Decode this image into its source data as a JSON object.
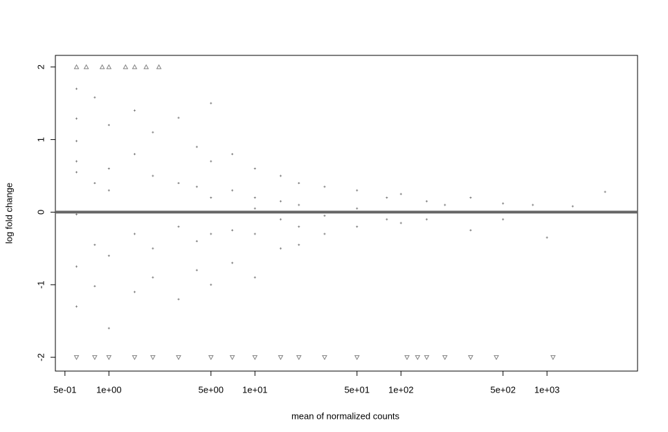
{
  "chart_data": {
    "type": "scatter",
    "xlabel": "mean of normalized counts",
    "ylabel": "log fold change",
    "xscale": "log",
    "xlim": [
      0.43,
      4170
    ],
    "ylim": [
      -2.19,
      2.16
    ],
    "xticks": [
      {
        "value": 0.5,
        "label": "5e-01"
      },
      {
        "value": 1,
        "label": "1e+00"
      },
      {
        "value": 5,
        "label": "5e+00"
      },
      {
        "value": 10,
        "label": "1e+01"
      },
      {
        "value": 50,
        "label": "5e+01"
      },
      {
        "value": 100,
        "label": "1e+02"
      },
      {
        "value": 500,
        "label": "5e+02"
      },
      {
        "value": 1000,
        "label": "1e+03"
      }
    ],
    "yticks": [
      -2,
      -1,
      0,
      1,
      2
    ],
    "hline": 0,
    "hline_color": "#666666",
    "series": [
      {
        "color": "#808080",
        "marker": "plus",
        "x": [
          0.6,
          0.6,
          0.6,
          0.6,
          0.6,
          0.6,
          0.6,
          0.6,
          0.8,
          0.8,
          0.8,
          0.8,
          1,
          1,
          1,
          1,
          1,
          1.5,
          1.5,
          1.5,
          1.5,
          2,
          2,
          2,
          2,
          3,
          3,
          3,
          3,
          4,
          4,
          4,
          4,
          5,
          5,
          5,
          5,
          5,
          7,
          7,
          7,
          7,
          10,
          10,
          10,
          10,
          10,
          15,
          15,
          15,
          15,
          20,
          20,
          20,
          20,
          30,
          30,
          30,
          50,
          50,
          50,
          80,
          80,
          100,
          100,
          150,
          150,
          200,
          300,
          300,
          500,
          500,
          800,
          1000,
          1500,
          2500
        ],
        "values": [
          1.7,
          1.29,
          0.98,
          0.7,
          0.55,
          -0.03,
          -0.75,
          -1.3,
          1.58,
          0.4,
          -0.45,
          -1.02,
          1.2,
          0.6,
          0.3,
          -0.6,
          -1.6,
          1.4,
          0.8,
          -0.3,
          -1.1,
          1.1,
          0.5,
          -0.5,
          -0.9,
          1.3,
          0.4,
          -0.2,
          -1.2,
          0.9,
          0.35,
          -0.4,
          -0.8,
          1.5,
          0.7,
          0.2,
          -0.3,
          -1.0,
          0.8,
          0.3,
          -0.25,
          -0.7,
          0.6,
          0.2,
          0.05,
          -0.3,
          -0.9,
          0.5,
          0.15,
          -0.1,
          -0.5,
          0.4,
          0.1,
          -0.2,
          -0.45,
          0.35,
          -0.05,
          -0.3,
          0.3,
          0.05,
          -0.2,
          0.2,
          -0.1,
          0.25,
          -0.15,
          0.15,
          -0.1,
          0.1,
          0.2,
          -0.25,
          0.12,
          -0.1,
          0.1,
          -0.35,
          0.08,
          0.28
        ]
      },
      {
        "color": "#808080",
        "marker": "triangle-up",
        "x": [
          0.6,
          0.7,
          0.9,
          1.0,
          1.3,
          1.5,
          1.8,
          2.2
        ],
        "values": [
          2,
          2,
          2,
          2,
          2,
          2,
          2,
          2
        ]
      },
      {
        "color": "#808080",
        "marker": "triangle-down",
        "x": [
          0.6,
          0.8,
          1,
          1.5,
          2,
          3,
          5,
          7,
          10,
          15,
          20,
          30,
          50,
          110,
          130,
          150,
          200,
          300,
          450,
          1100
        ],
        "values": [
          -2,
          -2,
          -2,
          -2,
          -2,
          -2,
          -2,
          -2,
          -2,
          -2,
          -2,
          -2,
          -2,
          -2,
          -2,
          -2,
          -2,
          -2,
          -2,
          -2
        ]
      }
    ]
  }
}
